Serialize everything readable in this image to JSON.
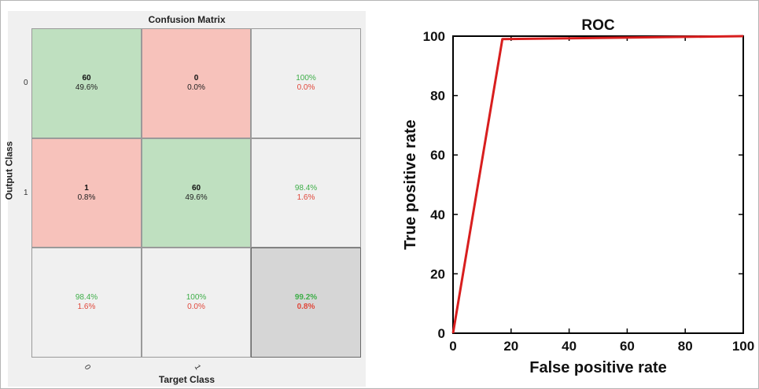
{
  "confusion_matrix": {
    "title": "Confusion Matrix",
    "ylabel": "Output Class",
    "xlabel": "Target Class",
    "row_ticks": [
      "0",
      "1"
    ],
    "col_ticks": [
      "0",
      "1"
    ],
    "cells": [
      [
        {
          "count": "60",
          "pct": "49.6%"
        },
        {
          "count": "0",
          "pct": "0.0%"
        },
        {
          "good": "100%",
          "bad": "0.0%"
        }
      ],
      [
        {
          "count": "1",
          "pct": "0.8%"
        },
        {
          "count": "60",
          "pct": "49.6%"
        },
        {
          "good": "98.4%",
          "bad": "1.6%"
        }
      ],
      [
        {
          "good": "98.4%",
          "bad": "1.6%"
        },
        {
          "good": "100%",
          "bad": "0.0%"
        },
        {
          "good": "99.2%",
          "bad": "0.8%"
        }
      ]
    ]
  },
  "chart_data": [
    {
      "type": "heatmap",
      "title": "Confusion Matrix",
      "xlabel": "Target Class",
      "ylabel": "Output Class",
      "x_categories": [
        "0",
        "1"
      ],
      "y_categories": [
        "0",
        "1"
      ],
      "values": [
        [
          60,
          0
        ],
        [
          1,
          60
        ]
      ]
    },
    {
      "type": "line",
      "title": "ROC",
      "xlabel": "False positive rate",
      "ylabel": "True positive rate",
      "xlim": [
        0,
        100
      ],
      "ylim": [
        0,
        100
      ],
      "xticks": [
        0,
        20,
        40,
        60,
        80,
        100
      ],
      "yticks": [
        0,
        20,
        40,
        60,
        80,
        100
      ],
      "series": [
        {
          "x": [
            0,
            17,
            100
          ],
          "y": [
            0,
            99,
            100
          ],
          "color": "#d81e1e"
        }
      ]
    }
  ]
}
